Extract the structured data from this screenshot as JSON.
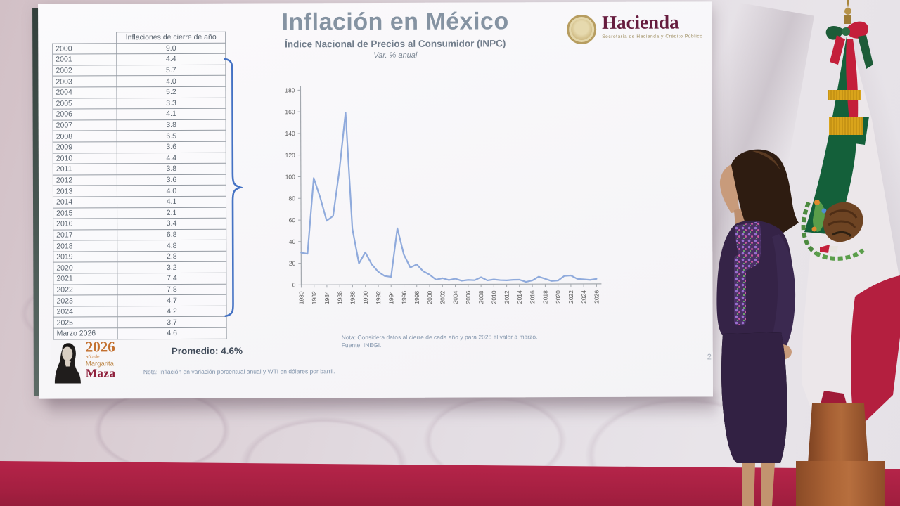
{
  "slide": {
    "title": "Inflación en México",
    "subtitle": "Índice Nacional de Precios al Consumidor (INPC)",
    "var_label": "Var. % anual",
    "page_number": "2",
    "promedio": "Promedio: 4.6%",
    "notes": {
      "chart_note": "Nota: Considera datos al cierre de cada año y para 2026 el valor a marzo.",
      "source": "Fuente: INEGI.",
      "bottom_note": "Nota: Inflación en variación porcentual anual y WTI en dólares por barril."
    },
    "logo": {
      "name": "Hacienda",
      "subtitle": "Secretaría de Hacienda y Crédito Público"
    },
    "branding": {
      "year": "2026",
      "line1": "año de",
      "line2": "Margarita",
      "line3": "Maza"
    },
    "table": {
      "header": "Inflaciones de cierre de año",
      "rows": [
        [
          "2000",
          "9.0"
        ],
        [
          "2001",
          "4.4"
        ],
        [
          "2002",
          "5.7"
        ],
        [
          "2003",
          "4.0"
        ],
        [
          "2004",
          "5.2"
        ],
        [
          "2005",
          "3.3"
        ],
        [
          "2006",
          "4.1"
        ],
        [
          "2007",
          "3.8"
        ],
        [
          "2008",
          "6.5"
        ],
        [
          "2009",
          "3.6"
        ],
        [
          "2010",
          "4.4"
        ],
        [
          "2011",
          "3.8"
        ],
        [
          "2012",
          "3.6"
        ],
        [
          "2013",
          "4.0"
        ],
        [
          "2014",
          "4.1"
        ],
        [
          "2015",
          "2.1"
        ],
        [
          "2016",
          "3.4"
        ],
        [
          "2017",
          "6.8"
        ],
        [
          "2018",
          "4.8"
        ],
        [
          "2019",
          "2.8"
        ],
        [
          "2020",
          "3.2"
        ],
        [
          "2021",
          "7.4"
        ],
        [
          "2022",
          "7.8"
        ],
        [
          "2023",
          "4.7"
        ],
        [
          "2024",
          "4.2"
        ],
        [
          "2025",
          "3.7"
        ],
        [
          "Marzo 2026",
          "4.6"
        ]
      ]
    }
  },
  "chart_data": {
    "type": "line",
    "title": "Inflación en México",
    "subtitle": "Índice Nacional de Precios al Consumidor (INPC)",
    "ylabel": "Var. % anual",
    "x": [
      1980,
      1981,
      1982,
      1983,
      1984,
      1985,
      1986,
      1987,
      1988,
      1989,
      1990,
      1991,
      1992,
      1993,
      1994,
      1995,
      1996,
      1997,
      1998,
      1999,
      2000,
      2001,
      2002,
      2003,
      2004,
      2005,
      2006,
      2007,
      2008,
      2009,
      2010,
      2011,
      2012,
      2013,
      2014,
      2015,
      2016,
      2017,
      2018,
      2019,
      2020,
      2021,
      2022,
      2023,
      2024,
      2025,
      2026
    ],
    "values": [
      29.8,
      28.7,
      98.8,
      80.8,
      59.2,
      63.7,
      105.7,
      159.2,
      51.7,
      19.7,
      29.9,
      18.8,
      11.9,
      8.0,
      7.1,
      52.0,
      27.7,
      15.7,
      18.6,
      12.3,
      9.0,
      4.4,
      5.7,
      4.0,
      5.2,
      3.3,
      4.1,
      3.8,
      6.5,
      3.6,
      4.4,
      3.8,
      3.6,
      4.0,
      4.1,
      2.1,
      3.4,
      6.8,
      4.8,
      2.8,
      3.2,
      7.4,
      7.8,
      4.7,
      4.2,
      3.7,
      4.6
    ],
    "ylim": [
      0,
      180
    ],
    "ytick_step": 20,
    "xtick_label_every": 2,
    "grid": false,
    "legend": "none",
    "line_color": "#8faadc"
  },
  "icons": {
    "hacienda_seal": "golden circular government seal",
    "margarita_maza_portrait": "black and white portrait engraving"
  },
  "colors": {
    "accent_line": "#8faadc",
    "brace_blue": "#4472c4",
    "hacienda_maroon": "#661c3e",
    "baseboard_crimson": "#b52449",
    "suit_purple": "#352347",
    "title_gray": "#8593a2"
  }
}
